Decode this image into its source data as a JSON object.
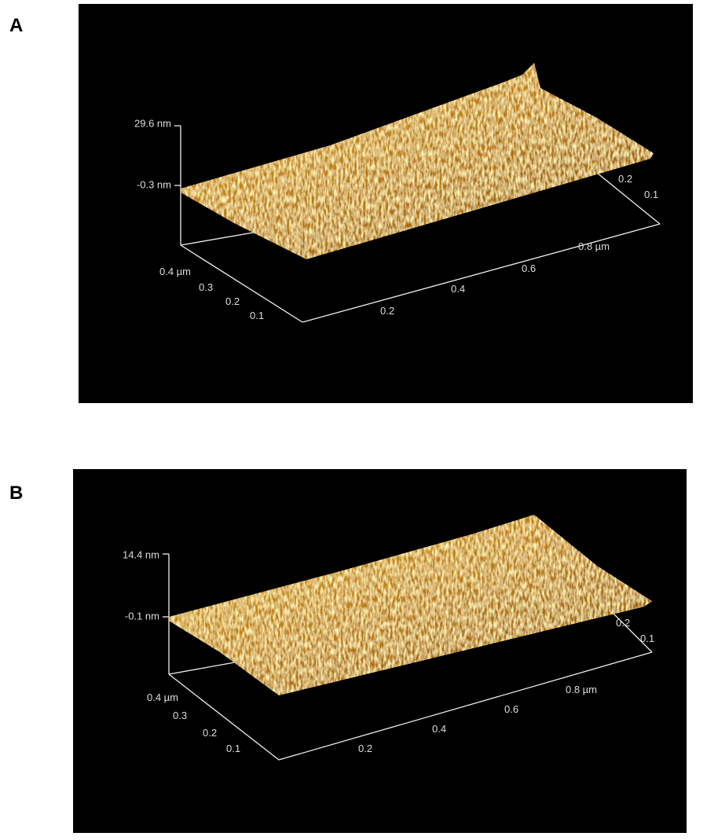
{
  "panels": [
    {
      "label": "A",
      "z_labels": [
        "29.6 nm",
        "-0.3 nm"
      ],
      "x_labels": [
        "0.2",
        "0.4",
        "0.6",
        "0.8 µm"
      ],
      "y_labels": [
        "0.4 µm",
        "0.3",
        "0.2",
        "0.1"
      ],
      "back_labels": [
        "0.2",
        "0.1"
      ]
    },
    {
      "label": "B",
      "z_labels": [
        "14.4 nm",
        "-0.1 nm"
      ],
      "x_labels": [
        "0.2",
        "0.4",
        "0.6",
        "0.8 µm"
      ],
      "y_labels": [
        "0.4 µm",
        "0.3",
        "0.2",
        "0.1"
      ],
      "back_labels": [
        "0.2",
        "0.1"
      ]
    }
  ]
}
